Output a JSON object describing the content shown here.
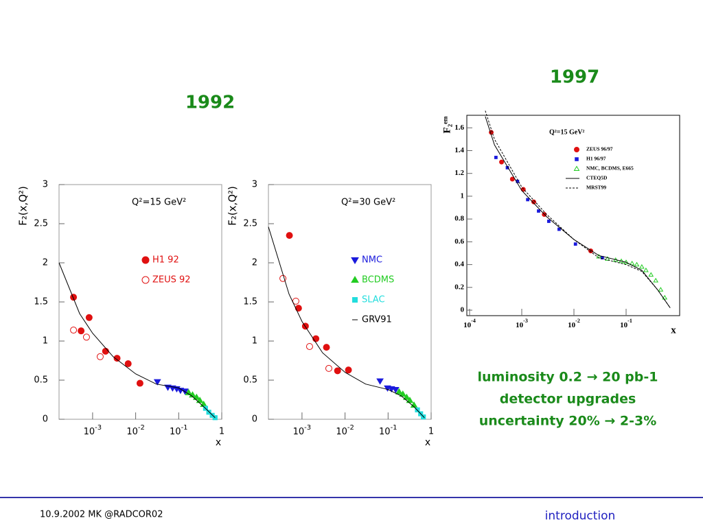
{
  "chart_data": [
    {
      "type": "scatter",
      "title": "1992",
      "annotation": "Q²=15 GeV²",
      "x_label": "x",
      "y_label": "F₂(x,Q²)",
      "log_x": true,
      "xlim": [
        0.000166,
        1
      ],
      "ylim": [
        0,
        3
      ],
      "xticks": [
        {
          "value": 0.001,
          "label": "10",
          "exp": "-3"
        },
        {
          "value": 0.01,
          "label": "10",
          "exp": "-2"
        },
        {
          "value": 0.1,
          "label": "10",
          "exp": "-1"
        },
        1
      ],
      "yticks": [
        0,
        0.5,
        1,
        1.5,
        2,
        2.5,
        3
      ],
      "series": [
        {
          "name": "H1 92",
          "color": "#e01010",
          "marker": "filled-circle",
          "x": [
            0.00036,
            0.00054,
            0.00083,
            0.002,
            0.0037,
            0.0067,
            0.0126
          ],
          "values": [
            1.56,
            1.13,
            1.3,
            0.87,
            0.78,
            0.71,
            0.46
          ]
        },
        {
          "name": "ZEUS 92",
          "color": "#e01010",
          "marker": "open-circle",
          "x": [
            0.00036,
            0.00072,
            0.0015
          ],
          "values": [
            1.14,
            1.05,
            0.8
          ]
        },
        {
          "color": "#1a1adc",
          "marker": "triangle-down",
          "x": [
            0.032,
            0.056,
            0.072,
            0.09,
            0.11,
            0.14
          ],
          "values": [
            0.48,
            0.41,
            0.4,
            0.39,
            0.37,
            0.36
          ]
        },
        {
          "color": "#22cc22",
          "marker": "triangle-up",
          "x": [
            0.17,
            0.21,
            0.26,
            0.31,
            0.38
          ],
          "values": [
            0.34,
            0.31,
            0.28,
            0.24,
            0.19
          ]
        },
        {
          "color": "#22dddd",
          "marker": "square",
          "x": [
            0.42,
            0.5,
            0.6,
            0.7
          ],
          "values": [
            0.14,
            0.09,
            0.05,
            0.02
          ]
        },
        {
          "color": "#000000",
          "marker": "line",
          "x": [
            0.000166,
            0.0005,
            0.001,
            0.003,
            0.01,
            0.03,
            0.1,
            0.2,
            0.4,
            0.7
          ],
          "values": [
            2.0,
            1.35,
            1.1,
            0.8,
            0.58,
            0.45,
            0.4,
            0.3,
            0.15,
            0.02
          ]
        }
      ]
    },
    {
      "type": "scatter",
      "annotation": "Q²=30 GeV²",
      "x_label": "x",
      "y_label": "F₂(x,Q²)",
      "log_x": true,
      "xlim": [
        0.000166,
        1
      ],
      "ylim": [
        0,
        3
      ],
      "xticks": [
        {
          "value": 0.001,
          "label": "10",
          "exp": "-3"
        },
        {
          "value": 0.01,
          "label": "10",
          "exp": "-2"
        },
        {
          "value": 0.1,
          "label": "10",
          "exp": "-1"
        },
        1
      ],
      "yticks": [
        0,
        0.5,
        1,
        1.5,
        2,
        2.5,
        3
      ],
      "series": [
        {
          "color": "#e01010",
          "marker": "filled-circle",
          "x": [
            0.00051,
            0.00083,
            0.0012,
            0.0021,
            0.0037,
            0.0067,
            0.012
          ],
          "values": [
            2.35,
            1.42,
            1.19,
            1.03,
            0.92,
            0.62,
            0.63
          ]
        },
        {
          "color": "#e01010",
          "marker": "open-circle",
          "x": [
            0.00036,
            0.00072,
            0.0015,
            0.0042
          ],
          "values": [
            1.8,
            1.51,
            0.93,
            0.65
          ]
        },
        {
          "name": "NMC",
          "color": "#1a1adc",
          "marker": "triangle-down",
          "x": [
            0.065,
            0.097,
            0.12,
            0.15
          ],
          "values": [
            0.49,
            0.4,
            0.39,
            0.38
          ]
        },
        {
          "name": "BCDMS",
          "color": "#22cc22",
          "marker": "triangle-up",
          "x": [
            0.18,
            0.22,
            0.27,
            0.32,
            0.4
          ],
          "values": [
            0.35,
            0.32,
            0.28,
            0.24,
            0.18
          ]
        },
        {
          "name": "SLAC",
          "color": "#22dddd",
          "marker": "square",
          "x": [
            0.48,
            0.57,
            0.66
          ],
          "values": [
            0.12,
            0.07,
            0.03
          ]
        },
        {
          "name": "GRV91",
          "color": "#000000",
          "marker": "line",
          "x": [
            0.000166,
            0.0005,
            0.001,
            0.003,
            0.01,
            0.03,
            0.1,
            0.2,
            0.4,
            0.7
          ],
          "values": [
            2.46,
            1.6,
            1.25,
            0.85,
            0.6,
            0.45,
            0.38,
            0.3,
            0.16,
            0.02
          ]
        }
      ]
    },
    {
      "type": "scatter",
      "title": "1997",
      "annotation": "Q²=15 GeV²",
      "x_label": "x",
      "y_label": "F₂ᵉᵐ",
      "log_x": true,
      "xlim": [
        0.0001,
        1
      ],
      "ylim": [
        -0.048,
        1.71
      ],
      "xticks": [
        {
          "value": 0.0001,
          "label": "10",
          "exp": "-4"
        },
        {
          "value": 0.001,
          "label": "10",
          "exp": "-3"
        },
        {
          "value": 0.01,
          "label": "10",
          "exp": "-2"
        },
        {
          "value": 0.1,
          "label": "10",
          "exp": "-1"
        }
      ],
      "yticks": [
        0,
        0.2,
        0.4,
        0.6,
        0.8,
        1,
        1.2,
        1.4,
        1.6
      ],
      "series": [
        {
          "name": "ZEUS 96/97",
          "color": "#e01010",
          "marker": "filled-circle",
          "x": [
            0.00026,
            0.00041,
            0.00066,
            0.00107,
            0.0017,
            0.0027,
            0.021
          ],
          "values": [
            1.56,
            1.3,
            1.15,
            1.06,
            0.95,
            0.84,
            0.52
          ]
        },
        {
          "name": "H1 96/97",
          "color": "#1a1adc",
          "marker": "square",
          "x": [
            0.00032,
            0.00053,
            0.00083,
            0.0013,
            0.0021,
            0.0033,
            0.0052,
            0.0107,
            0.035
          ],
          "values": [
            1.34,
            1.25,
            1.13,
            0.97,
            0.87,
            0.78,
            0.71,
            0.58,
            0.46
          ]
        },
        {
          "name": "NMC, BCDMS, E665",
          "color": "#22cc22",
          "marker": "open-triangle",
          "x": [
            0.03,
            0.044,
            0.063,
            0.081,
            0.1,
            0.13,
            0.16,
            0.2,
            0.24,
            0.3,
            0.37,
            0.46,
            0.55
          ],
          "values": [
            0.47,
            0.45,
            0.44,
            0.43,
            0.42,
            0.41,
            0.4,
            0.38,
            0.35,
            0.31,
            0.26,
            0.18,
            0.11
          ]
        },
        {
          "name": "CTEQ5D",
          "color": "#000000",
          "marker": "line",
          "x": [
            0.0002,
            0.0003,
            0.001,
            0.003,
            0.01,
            0.03,
            0.1,
            0.2,
            0.4,
            0.7
          ],
          "values": [
            1.7,
            1.45,
            1.05,
            0.82,
            0.62,
            0.48,
            0.42,
            0.35,
            0.18,
            0.02
          ]
        },
        {
          "name": "MRST99",
          "color": "#000000",
          "marker": "dashed-line",
          "x": [
            0.0002,
            0.0003,
            0.001,
            0.003,
            0.01,
            0.03,
            0.1,
            0.2,
            0.4,
            0.7
          ],
          "values": [
            1.75,
            1.5,
            1.08,
            0.84,
            0.62,
            0.46,
            0.4,
            0.34,
            0.18,
            0.02
          ]
        }
      ]
    }
  ],
  "bullets": [
    "luminosity 0.2 → 20 pb-1",
    "detector upgrades",
    "uncertainty 20% → 2-3%"
  ],
  "footer": {
    "left": "10.9.2002 MK @RADCOR02",
    "right": "introduction"
  }
}
